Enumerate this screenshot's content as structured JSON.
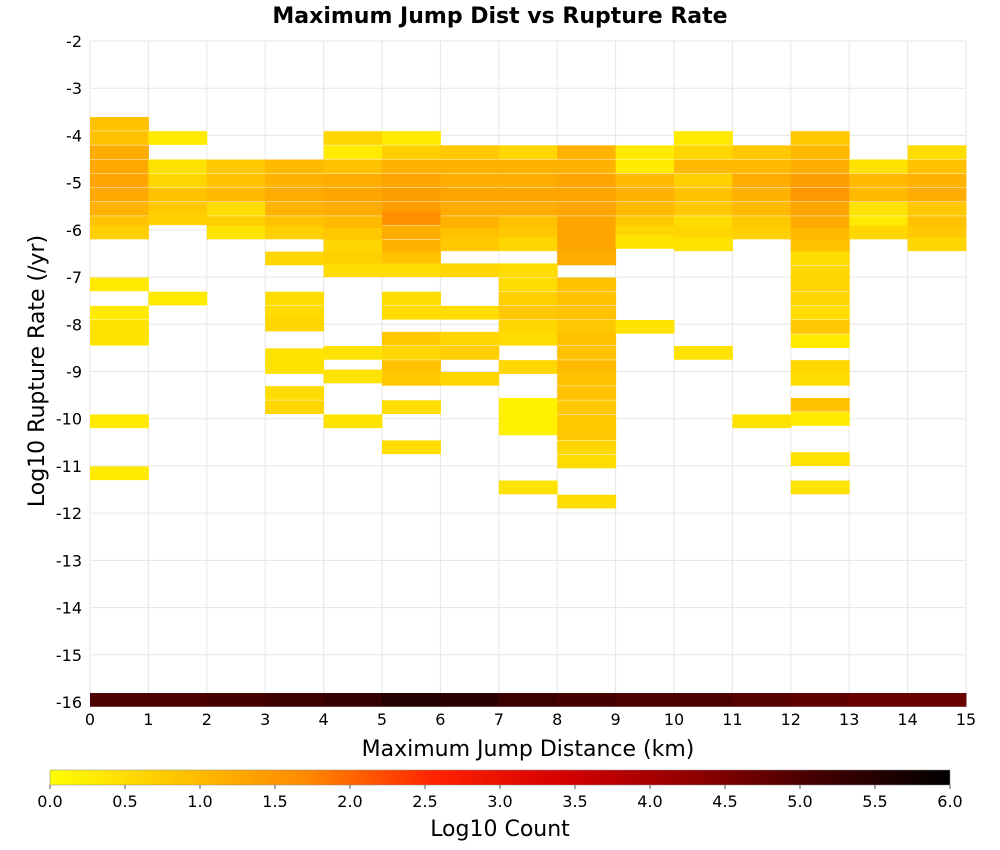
{
  "chart_data": {
    "type": "heatmap",
    "title": "Maximum Jump Dist vs Rupture Rate",
    "xlabel": "Maximum Jump Distance (km)",
    "ylabel": "Log10 Rupture Rate (/yr)",
    "xlim": [
      0,
      15
    ],
    "ylim": [
      -16,
      -2
    ],
    "x_ticks": [
      "0",
      "1",
      "2",
      "3",
      "4",
      "5",
      "6",
      "7",
      "8",
      "9",
      "10",
      "11",
      "12",
      "13",
      "14",
      "15"
    ],
    "y_ticks": [
      "-2",
      "-3",
      "-4",
      "-5",
      "-6",
      "-7",
      "-8",
      "-9",
      "-10",
      "-11",
      "-12",
      "-13",
      "-14",
      "-15",
      "-16"
    ],
    "bin_height": 0.28,
    "grid": true,
    "colorbar": {
      "label": "Log10 Count",
      "range": [
        0,
        6
      ],
      "ticks": [
        "0.0",
        "0.5",
        "1.0",
        "1.5",
        "2.0",
        "2.5",
        "3.0",
        "3.5",
        "4.0",
        "4.5",
        "5.0",
        "5.5",
        "6.0"
      ],
      "colors": [
        "#ffff00",
        "#ffc400",
        "#ff8800",
        "#ff2200",
        "#d40000",
        "#900000",
        "#400000",
        "#000000"
      ]
    },
    "bins": [
      {
        "x": 0,
        "y": -3.75,
        "v": 0.9
      },
      {
        "x": 0,
        "y": -4.05,
        "v": 0.9
      },
      {
        "x": 0,
        "y": -4.35,
        "v": 1.2
      },
      {
        "x": 0,
        "y": -4.65,
        "v": 1.25
      },
      {
        "x": 0,
        "y": -4.95,
        "v": 1.3
      },
      {
        "x": 0,
        "y": -5.25,
        "v": 1.25
      },
      {
        "x": 0,
        "y": -5.55,
        "v": 1.1
      },
      {
        "x": 0,
        "y": -5.85,
        "v": 0.9
      },
      {
        "x": 0,
        "y": -6.05,
        "v": 0.7
      },
      {
        "x": 0,
        "y": -7.15,
        "v": 0.3
      },
      {
        "x": 0,
        "y": -7.75,
        "v": 0.3
      },
      {
        "x": 0,
        "y": -8.05,
        "v": 0.4
      },
      {
        "x": 0,
        "y": -8.3,
        "v": 0.4
      },
      {
        "x": 0,
        "y": -10.05,
        "v": 0.3
      },
      {
        "x": 0,
        "y": -11.15,
        "v": 0.3
      },
      {
        "x": 1,
        "y": -4.05,
        "v": 0.3
      },
      {
        "x": 1,
        "y": -4.65,
        "v": 0.4
      },
      {
        "x": 1,
        "y": -4.95,
        "v": 0.6
      },
      {
        "x": 1,
        "y": -5.25,
        "v": 0.9
      },
      {
        "x": 1,
        "y": -5.55,
        "v": 0.8
      },
      {
        "x": 1,
        "y": -5.75,
        "v": 0.7
      },
      {
        "x": 1,
        "y": -7.45,
        "v": 0.3
      },
      {
        "x": 2,
        "y": -4.65,
        "v": 0.8
      },
      {
        "x": 2,
        "y": -4.95,
        "v": 0.9
      },
      {
        "x": 2,
        "y": -5.25,
        "v": 1.0
      },
      {
        "x": 2,
        "y": -5.55,
        "v": 0.5
      },
      {
        "x": 2,
        "y": -5.85,
        "v": 0.7
      },
      {
        "x": 2,
        "y": -6.05,
        "v": 0.4
      },
      {
        "x": 3,
        "y": -4.65,
        "v": 1.0
      },
      {
        "x": 3,
        "y": -4.95,
        "v": 1.1
      },
      {
        "x": 3,
        "y": -5.25,
        "v": 1.2
      },
      {
        "x": 3,
        "y": -5.55,
        "v": 1.1
      },
      {
        "x": 3,
        "y": -5.85,
        "v": 0.9
      },
      {
        "x": 3,
        "y": -6.05,
        "v": 0.7
      },
      {
        "x": 3,
        "y": -6.6,
        "v": 0.6
      },
      {
        "x": 3,
        "y": -7.45,
        "v": 0.5
      },
      {
        "x": 3,
        "y": -7.75,
        "v": 0.5
      },
      {
        "x": 3,
        "y": -8.0,
        "v": 0.6
      },
      {
        "x": 3,
        "y": -8.65,
        "v": 0.4
      },
      {
        "x": 3,
        "y": -8.9,
        "v": 0.4
      },
      {
        "x": 3,
        "y": -9.45,
        "v": 0.5
      },
      {
        "x": 3,
        "y": -9.75,
        "v": 0.6
      },
      {
        "x": 4,
        "y": -4.05,
        "v": 0.6
      },
      {
        "x": 4,
        "y": -4.35,
        "v": 0.3
      },
      {
        "x": 4,
        "y": -4.65,
        "v": 0.9
      },
      {
        "x": 4,
        "y": -4.95,
        "v": 1.2
      },
      {
        "x": 4,
        "y": -5.25,
        "v": 1.3
      },
      {
        "x": 4,
        "y": -5.55,
        "v": 1.2
      },
      {
        "x": 4,
        "y": -5.85,
        "v": 1.0
      },
      {
        "x": 4,
        "y": -6.1,
        "v": 0.8
      },
      {
        "x": 4,
        "y": -6.35,
        "v": 0.6
      },
      {
        "x": 4,
        "y": -6.6,
        "v": 0.7
      },
      {
        "x": 4,
        "y": -6.85,
        "v": 0.5
      },
      {
        "x": 4,
        "y": -8.6,
        "v": 0.4
      },
      {
        "x": 4,
        "y": -9.1,
        "v": 0.4
      },
      {
        "x": 4,
        "y": -10.05,
        "v": 0.4
      },
      {
        "x": 5,
        "y": -4.05,
        "v": 0.3
      },
      {
        "x": 5,
        "y": -4.35,
        "v": 0.7
      },
      {
        "x": 5,
        "y": -4.65,
        "v": 1.1
      },
      {
        "x": 5,
        "y": -4.95,
        "v": 1.3
      },
      {
        "x": 5,
        "y": -5.25,
        "v": 1.4
      },
      {
        "x": 5,
        "y": -5.55,
        "v": 1.4
      },
      {
        "x": 5,
        "y": -5.75,
        "v": 1.6
      },
      {
        "x": 5,
        "y": -6.05,
        "v": 1.2
      },
      {
        "x": 5,
        "y": -6.35,
        "v": 1.1
      },
      {
        "x": 5,
        "y": -6.6,
        "v": 0.9
      },
      {
        "x": 5,
        "y": -6.85,
        "v": 0.5
      },
      {
        "x": 5,
        "y": -7.45,
        "v": 0.5
      },
      {
        "x": 5,
        "y": -7.75,
        "v": 0.5
      },
      {
        "x": 5,
        "y": -8.3,
        "v": 0.8
      },
      {
        "x": 5,
        "y": -8.6,
        "v": 0.6
      },
      {
        "x": 5,
        "y": -8.9,
        "v": 0.9
      },
      {
        "x": 5,
        "y": -9.15,
        "v": 0.8
      },
      {
        "x": 5,
        "y": -9.75,
        "v": 0.5
      },
      {
        "x": 5,
        "y": -10.6,
        "v": 0.5
      },
      {
        "x": 6,
        "y": -4.35,
        "v": 0.8
      },
      {
        "x": 6,
        "y": -4.65,
        "v": 1.1
      },
      {
        "x": 6,
        "y": -4.95,
        "v": 1.2
      },
      {
        "x": 6,
        "y": -5.25,
        "v": 1.3
      },
      {
        "x": 6,
        "y": -5.55,
        "v": 1.2
      },
      {
        "x": 6,
        "y": -5.85,
        "v": 1.1
      },
      {
        "x": 6,
        "y": -6.1,
        "v": 0.9
      },
      {
        "x": 6,
        "y": -6.3,
        "v": 0.8
      },
      {
        "x": 6,
        "y": -6.85,
        "v": 0.6
      },
      {
        "x": 6,
        "y": -7.75,
        "v": 0.5
      },
      {
        "x": 6,
        "y": -8.3,
        "v": 0.6
      },
      {
        "x": 6,
        "y": -8.6,
        "v": 0.7
      },
      {
        "x": 6,
        "y": -9.15,
        "v": 0.6
      },
      {
        "x": 7,
        "y": -4.35,
        "v": 0.6
      },
      {
        "x": 7,
        "y": -4.65,
        "v": 1.1
      },
      {
        "x": 7,
        "y": -4.95,
        "v": 1.2
      },
      {
        "x": 7,
        "y": -5.25,
        "v": 1.3
      },
      {
        "x": 7,
        "y": -5.55,
        "v": 1.2
      },
      {
        "x": 7,
        "y": -5.85,
        "v": 0.9
      },
      {
        "x": 7,
        "y": -6.1,
        "v": 0.8
      },
      {
        "x": 7,
        "y": -6.3,
        "v": 0.6
      },
      {
        "x": 7,
        "y": -6.85,
        "v": 0.5
      },
      {
        "x": 7,
        "y": -7.15,
        "v": 0.5
      },
      {
        "x": 7,
        "y": -7.45,
        "v": 0.7
      },
      {
        "x": 7,
        "y": -7.75,
        "v": 0.8
      },
      {
        "x": 7,
        "y": -8.05,
        "v": 0.6
      },
      {
        "x": 7,
        "y": -8.3,
        "v": 0.5
      },
      {
        "x": 7,
        "y": -8.9,
        "v": 0.6
      },
      {
        "x": 7,
        "y": -9.7,
        "v": 0.2
      },
      {
        "x": 7,
        "y": -9.95,
        "v": 0.2
      },
      {
        "x": 7,
        "y": -10.2,
        "v": 0.2
      },
      {
        "x": 7,
        "y": -11.45,
        "v": 0.4
      },
      {
        "x": 8,
        "y": -4.35,
        "v": 1.1
      },
      {
        "x": 8,
        "y": -4.65,
        "v": 1.1
      },
      {
        "x": 8,
        "y": -4.95,
        "v": 1.3
      },
      {
        "x": 8,
        "y": -5.25,
        "v": 1.3
      },
      {
        "x": 8,
        "y": -5.55,
        "v": 1.3
      },
      {
        "x": 8,
        "y": -5.85,
        "v": 1.3
      },
      {
        "x": 8,
        "y": -6.1,
        "v": 1.3
      },
      {
        "x": 8,
        "y": -6.35,
        "v": 1.3
      },
      {
        "x": 8,
        "y": -6.6,
        "v": 1.2
      },
      {
        "x": 8,
        "y": -7.15,
        "v": 0.9
      },
      {
        "x": 8,
        "y": -7.45,
        "v": 0.9
      },
      {
        "x": 8,
        "y": -7.75,
        "v": 0.9
      },
      {
        "x": 8,
        "y": -8.05,
        "v": 0.8
      },
      {
        "x": 8,
        "y": -8.3,
        "v": 0.9
      },
      {
        "x": 8,
        "y": -8.6,
        "v": 0.9
      },
      {
        "x": 8,
        "y": -8.9,
        "v": 1.0
      },
      {
        "x": 8,
        "y": -9.15,
        "v": 0.9
      },
      {
        "x": 8,
        "y": -9.45,
        "v": 0.9
      },
      {
        "x": 8,
        "y": -9.75,
        "v": 0.8
      },
      {
        "x": 8,
        "y": -10.05,
        "v": 0.8
      },
      {
        "x": 8,
        "y": -10.3,
        "v": 0.8
      },
      {
        "x": 8,
        "y": -10.6,
        "v": 0.6
      },
      {
        "x": 8,
        "y": -10.9,
        "v": 0.5
      },
      {
        "x": 8,
        "y": -11.75,
        "v": 0.5
      },
      {
        "x": 9,
        "y": -4.35,
        "v": 0.3
      },
      {
        "x": 9,
        "y": -4.65,
        "v": 0.3
      },
      {
        "x": 9,
        "y": -4.95,
        "v": 1.0
      },
      {
        "x": 9,
        "y": -5.25,
        "v": 1.1
      },
      {
        "x": 9,
        "y": -5.55,
        "v": 1.0
      },
      {
        "x": 9,
        "y": -5.85,
        "v": 0.8
      },
      {
        "x": 9,
        "y": -6.05,
        "v": 0.6
      },
      {
        "x": 9,
        "y": -6.25,
        "v": 0.4
      },
      {
        "x": 9,
        "y": -8.05,
        "v": 0.4
      },
      {
        "x": 10,
        "y": -4.05,
        "v": 0.3
      },
      {
        "x": 10,
        "y": -4.35,
        "v": 0.6
      },
      {
        "x": 10,
        "y": -4.65,
        "v": 1.0
      },
      {
        "x": 10,
        "y": -4.95,
        "v": 0.7
      },
      {
        "x": 10,
        "y": -5.25,
        "v": 0.9
      },
      {
        "x": 10,
        "y": -5.55,
        "v": 0.8
      },
      {
        "x": 10,
        "y": -5.85,
        "v": 0.5
      },
      {
        "x": 10,
        "y": -6.05,
        "v": 0.6
      },
      {
        "x": 10,
        "y": -6.3,
        "v": 0.4
      },
      {
        "x": 10,
        "y": -8.6,
        "v": 0.4
      },
      {
        "x": 11,
        "y": -4.35,
        "v": 0.8
      },
      {
        "x": 11,
        "y": -4.65,
        "v": 1.0
      },
      {
        "x": 11,
        "y": -4.95,
        "v": 1.2
      },
      {
        "x": 11,
        "y": -5.25,
        "v": 1.1
      },
      {
        "x": 11,
        "y": -5.55,
        "v": 1.0
      },
      {
        "x": 11,
        "y": -5.85,
        "v": 0.8
      },
      {
        "x": 11,
        "y": -6.05,
        "v": 0.7
      },
      {
        "x": 11,
        "y": -10.05,
        "v": 0.4
      },
      {
        "x": 12,
        "y": -4.05,
        "v": 0.8
      },
      {
        "x": 12,
        "y": -4.35,
        "v": 1.0
      },
      {
        "x": 12,
        "y": -4.65,
        "v": 1.2
      },
      {
        "x": 12,
        "y": -4.95,
        "v": 1.4
      },
      {
        "x": 12,
        "y": -5.25,
        "v": 1.5
      },
      {
        "x": 12,
        "y": -5.55,
        "v": 1.3
      },
      {
        "x": 12,
        "y": -5.85,
        "v": 1.2
      },
      {
        "x": 12,
        "y": -6.1,
        "v": 1.0
      },
      {
        "x": 12,
        "y": -6.35,
        "v": 0.9
      },
      {
        "x": 12,
        "y": -6.6,
        "v": 0.5
      },
      {
        "x": 12,
        "y": -6.9,
        "v": 0.6
      },
      {
        "x": 12,
        "y": -7.15,
        "v": 0.6
      },
      {
        "x": 12,
        "y": -7.45,
        "v": 0.6
      },
      {
        "x": 12,
        "y": -7.75,
        "v": 0.5
      },
      {
        "x": 12,
        "y": -8.05,
        "v": 0.8
      },
      {
        "x": 12,
        "y": -8.35,
        "v": 0.3
      },
      {
        "x": 12,
        "y": -8.9,
        "v": 0.6
      },
      {
        "x": 12,
        "y": -9.15,
        "v": 0.5
      },
      {
        "x": 12,
        "y": -9.7,
        "v": 0.9
      },
      {
        "x": 12,
        "y": -10.0,
        "v": 0.3
      },
      {
        "x": 12,
        "y": -10.85,
        "v": 0.4
      },
      {
        "x": 12,
        "y": -11.45,
        "v": 0.4
      },
      {
        "x": 13,
        "y": -4.65,
        "v": 0.4
      },
      {
        "x": 13,
        "y": -4.95,
        "v": 1.0
      },
      {
        "x": 13,
        "y": -5.25,
        "v": 1.0
      },
      {
        "x": 13,
        "y": -5.55,
        "v": 0.4
      },
      {
        "x": 13,
        "y": -5.85,
        "v": 0.3
      },
      {
        "x": 13,
        "y": -6.05,
        "v": 0.6
      },
      {
        "x": 14,
        "y": -4.35,
        "v": 0.5
      },
      {
        "x": 14,
        "y": -4.65,
        "v": 0.9
      },
      {
        "x": 14,
        "y": -4.95,
        "v": 1.1
      },
      {
        "x": 14,
        "y": -5.25,
        "v": 1.2
      },
      {
        "x": 14,
        "y": -5.55,
        "v": 0.8
      },
      {
        "x": 14,
        "y": -5.85,
        "v": 0.9
      },
      {
        "x": 14,
        "y": -6.05,
        "v": 0.8
      },
      {
        "x": 14,
        "y": -6.3,
        "v": 0.6
      },
      {
        "x": 0,
        "y": -15.95,
        "v": 5.0
      },
      {
        "x": 1,
        "y": -15.95,
        "v": 5.0
      },
      {
        "x": 2,
        "y": -15.95,
        "v": 5.1
      },
      {
        "x": 3,
        "y": -15.95,
        "v": 5.2
      },
      {
        "x": 4,
        "y": -15.95,
        "v": 5.3
      },
      {
        "x": 5,
        "y": -15.95,
        "v": 5.5
      },
      {
        "x": 6,
        "y": -15.95,
        "v": 5.4
      },
      {
        "x": 7,
        "y": -15.95,
        "v": 5.2
      },
      {
        "x": 8,
        "y": -15.95,
        "v": 5.1
      },
      {
        "x": 9,
        "y": -15.95,
        "v": 5.0
      },
      {
        "x": 10,
        "y": -15.95,
        "v": 5.0
      },
      {
        "x": 11,
        "y": -15.95,
        "v": 4.9
      },
      {
        "x": 12,
        "y": -15.95,
        "v": 4.8
      },
      {
        "x": 13,
        "y": -15.95,
        "v": 4.7
      },
      {
        "x": 14,
        "y": -15.95,
        "v": 4.7
      }
    ]
  }
}
